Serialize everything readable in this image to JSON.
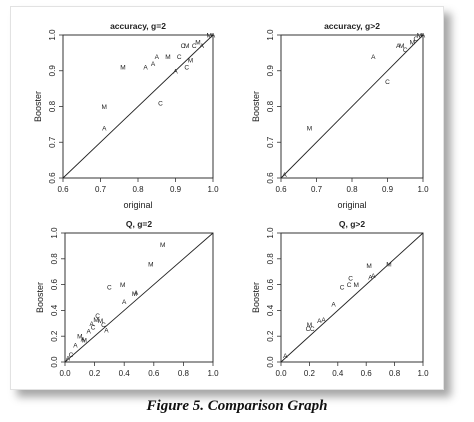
{
  "caption": "Figure 5. Comparison Graph",
  "chart_data": [
    {
      "type": "scatter",
      "title": "accuracy, g=2",
      "xlabel": "original",
      "ylabel": "Booster",
      "xlim": [
        0.6,
        1.0
      ],
      "ylim": [
        0.6,
        1.0
      ],
      "xticks": [
        "0.6",
        "0.7",
        "0.8",
        "0.9",
        "1.0"
      ],
      "yticks": [
        "0.6",
        "0.7",
        "0.8",
        "0.9",
        "1.0"
      ],
      "reference_line": "y=x",
      "points": [
        {
          "x": 0.71,
          "y": 0.8,
          "label": "M"
        },
        {
          "x": 0.71,
          "y": 0.74,
          "label": "A"
        },
        {
          "x": 0.76,
          "y": 0.91,
          "label": "M"
        },
        {
          "x": 0.82,
          "y": 0.91,
          "label": "A"
        },
        {
          "x": 0.84,
          "y": 0.92,
          "label": "A"
        },
        {
          "x": 0.85,
          "y": 0.94,
          "label": "A"
        },
        {
          "x": 0.86,
          "y": 0.81,
          "label": "C"
        },
        {
          "x": 0.88,
          "y": 0.94,
          "label": "M"
        },
        {
          "x": 0.9,
          "y": 0.9,
          "label": "A"
        },
        {
          "x": 0.91,
          "y": 0.94,
          "label": "C"
        },
        {
          "x": 0.92,
          "y": 0.97,
          "label": "C"
        },
        {
          "x": 0.93,
          "y": 0.97,
          "label": "M"
        },
        {
          "x": 0.93,
          "y": 0.91,
          "label": "C"
        },
        {
          "x": 0.94,
          "y": 0.93,
          "label": "M"
        },
        {
          "x": 0.95,
          "y": 0.97,
          "label": "C"
        },
        {
          "x": 0.96,
          "y": 0.98,
          "label": "M"
        },
        {
          "x": 0.97,
          "y": 0.97,
          "label": "A"
        },
        {
          "x": 0.99,
          "y": 1.0,
          "label": "M"
        },
        {
          "x": 1.0,
          "y": 1.0,
          "label": "A"
        }
      ]
    },
    {
      "type": "scatter",
      "title": "accuracy, g>2",
      "xlabel": "original",
      "ylabel": "Booster",
      "xlim": [
        0.6,
        1.0
      ],
      "ylim": [
        0.6,
        1.0
      ],
      "xticks": [
        "0.6",
        "0.7",
        "0.8",
        "0.9",
        "1.0"
      ],
      "yticks": [
        "0.6",
        "0.7",
        "0.8",
        "0.9",
        "1.0"
      ],
      "reference_line": "y=x",
      "points": [
        {
          "x": 0.61,
          "y": 0.61,
          "label": "A"
        },
        {
          "x": 0.68,
          "y": 0.74,
          "label": "M"
        },
        {
          "x": 0.86,
          "y": 0.94,
          "label": "A"
        },
        {
          "x": 0.9,
          "y": 0.87,
          "label": "C"
        },
        {
          "x": 0.93,
          "y": 0.97,
          "label": "A"
        },
        {
          "x": 0.94,
          "y": 0.97,
          "label": "M"
        },
        {
          "x": 0.95,
          "y": 0.96,
          "label": "C"
        },
        {
          "x": 0.97,
          "y": 0.98,
          "label": "M"
        },
        {
          "x": 0.98,
          "y": 0.99,
          "label": "C"
        },
        {
          "x": 0.99,
          "y": 1.0,
          "label": "M"
        },
        {
          "x": 1.0,
          "y": 1.0,
          "label": "A"
        }
      ]
    },
    {
      "type": "scatter",
      "title": "Q, g=2",
      "xlabel": "",
      "ylabel": "Booster",
      "xlim": [
        0.0,
        1.0
      ],
      "ylim": [
        0.0,
        1.0
      ],
      "xticks": [
        "0.0",
        "0.2",
        "0.4",
        "0.6",
        "0.8",
        "1.0"
      ],
      "yticks": [
        "0.0",
        "0.2",
        "0.4",
        "0.6",
        "0.8",
        "1.0"
      ],
      "reference_line": "y=x",
      "points": [
        {
          "x": 0.02,
          "y": 0.03,
          "label": "A"
        },
        {
          "x": 0.04,
          "y": 0.06,
          "label": "C"
        },
        {
          "x": 0.07,
          "y": 0.13,
          "label": "A"
        },
        {
          "x": 0.1,
          "y": 0.2,
          "label": "M"
        },
        {
          "x": 0.12,
          "y": 0.18,
          "label": "A"
        },
        {
          "x": 0.13,
          "y": 0.17,
          "label": "M"
        },
        {
          "x": 0.16,
          "y": 0.24,
          "label": "A"
        },
        {
          "x": 0.18,
          "y": 0.3,
          "label": "A"
        },
        {
          "x": 0.19,
          "y": 0.27,
          "label": "C"
        },
        {
          "x": 0.21,
          "y": 0.33,
          "label": "M"
        },
        {
          "x": 0.22,
          "y": 0.36,
          "label": "C"
        },
        {
          "x": 0.24,
          "y": 0.32,
          "label": "M"
        },
        {
          "x": 0.26,
          "y": 0.29,
          "label": "C"
        },
        {
          "x": 0.28,
          "y": 0.25,
          "label": "A"
        },
        {
          "x": 0.3,
          "y": 0.58,
          "label": "C"
        },
        {
          "x": 0.39,
          "y": 0.6,
          "label": "M"
        },
        {
          "x": 0.4,
          "y": 0.47,
          "label": "A"
        },
        {
          "x": 0.47,
          "y": 0.53,
          "label": "M"
        },
        {
          "x": 0.48,
          "y": 0.54,
          "label": "A"
        },
        {
          "x": 0.58,
          "y": 0.76,
          "label": "M"
        },
        {
          "x": 0.66,
          "y": 0.91,
          "label": "M"
        }
      ]
    },
    {
      "type": "scatter",
      "title": "Q, g>2",
      "xlabel": "",
      "ylabel": "Booster",
      "xlim": [
        0.0,
        1.0
      ],
      "ylim": [
        0.0,
        1.0
      ],
      "xticks": [
        "0.0",
        "0.2",
        "0.4",
        "0.6",
        "0.8",
        "1.0"
      ],
      "yticks": [
        "0.0",
        "0.2",
        "0.4",
        "0.6",
        "0.8",
        "1.0"
      ],
      "reference_line": "y=x",
      "points": [
        {
          "x": 0.03,
          "y": 0.05,
          "label": "A"
        },
        {
          "x": 0.19,
          "y": 0.26,
          "label": "C"
        },
        {
          "x": 0.2,
          "y": 0.29,
          "label": "M"
        },
        {
          "x": 0.22,
          "y": 0.26,
          "label": "C"
        },
        {
          "x": 0.27,
          "y": 0.32,
          "label": "A"
        },
        {
          "x": 0.3,
          "y": 0.33,
          "label": "A"
        },
        {
          "x": 0.37,
          "y": 0.45,
          "label": "A"
        },
        {
          "x": 0.43,
          "y": 0.58,
          "label": "C"
        },
        {
          "x": 0.48,
          "y": 0.6,
          "label": "C"
        },
        {
          "x": 0.49,
          "y": 0.65,
          "label": "C"
        },
        {
          "x": 0.53,
          "y": 0.6,
          "label": "M"
        },
        {
          "x": 0.62,
          "y": 0.75,
          "label": "M"
        },
        {
          "x": 0.63,
          "y": 0.66,
          "label": "A"
        },
        {
          "x": 0.65,
          "y": 0.67,
          "label": "A"
        },
        {
          "x": 0.76,
          "y": 0.76,
          "label": "M"
        }
      ]
    }
  ]
}
